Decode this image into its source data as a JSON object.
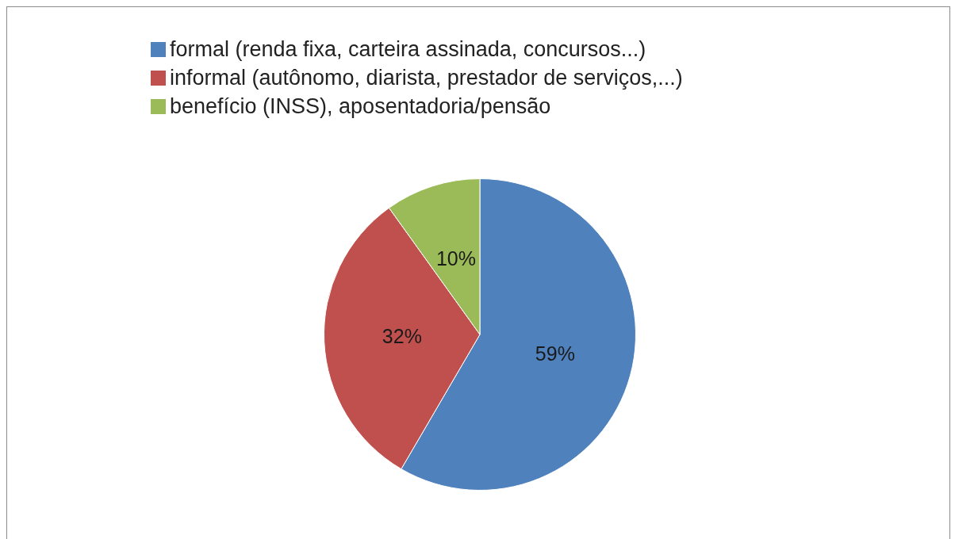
{
  "chart_data": {
    "type": "pie",
    "categories": [
      "formal (renda fixa, carteira assinada, concursos...)",
      "informal (autônomo, diarista, prestador de serviços,...)",
      "benefício (INSS), aposentadoria/pensão"
    ],
    "values": [
      59,
      32,
      10
    ],
    "colors": [
      "#4f81bd",
      "#c0504d",
      "#9bbb59"
    ],
    "value_labels": [
      "59%",
      "32%",
      "10%"
    ],
    "legend": "top"
  }
}
